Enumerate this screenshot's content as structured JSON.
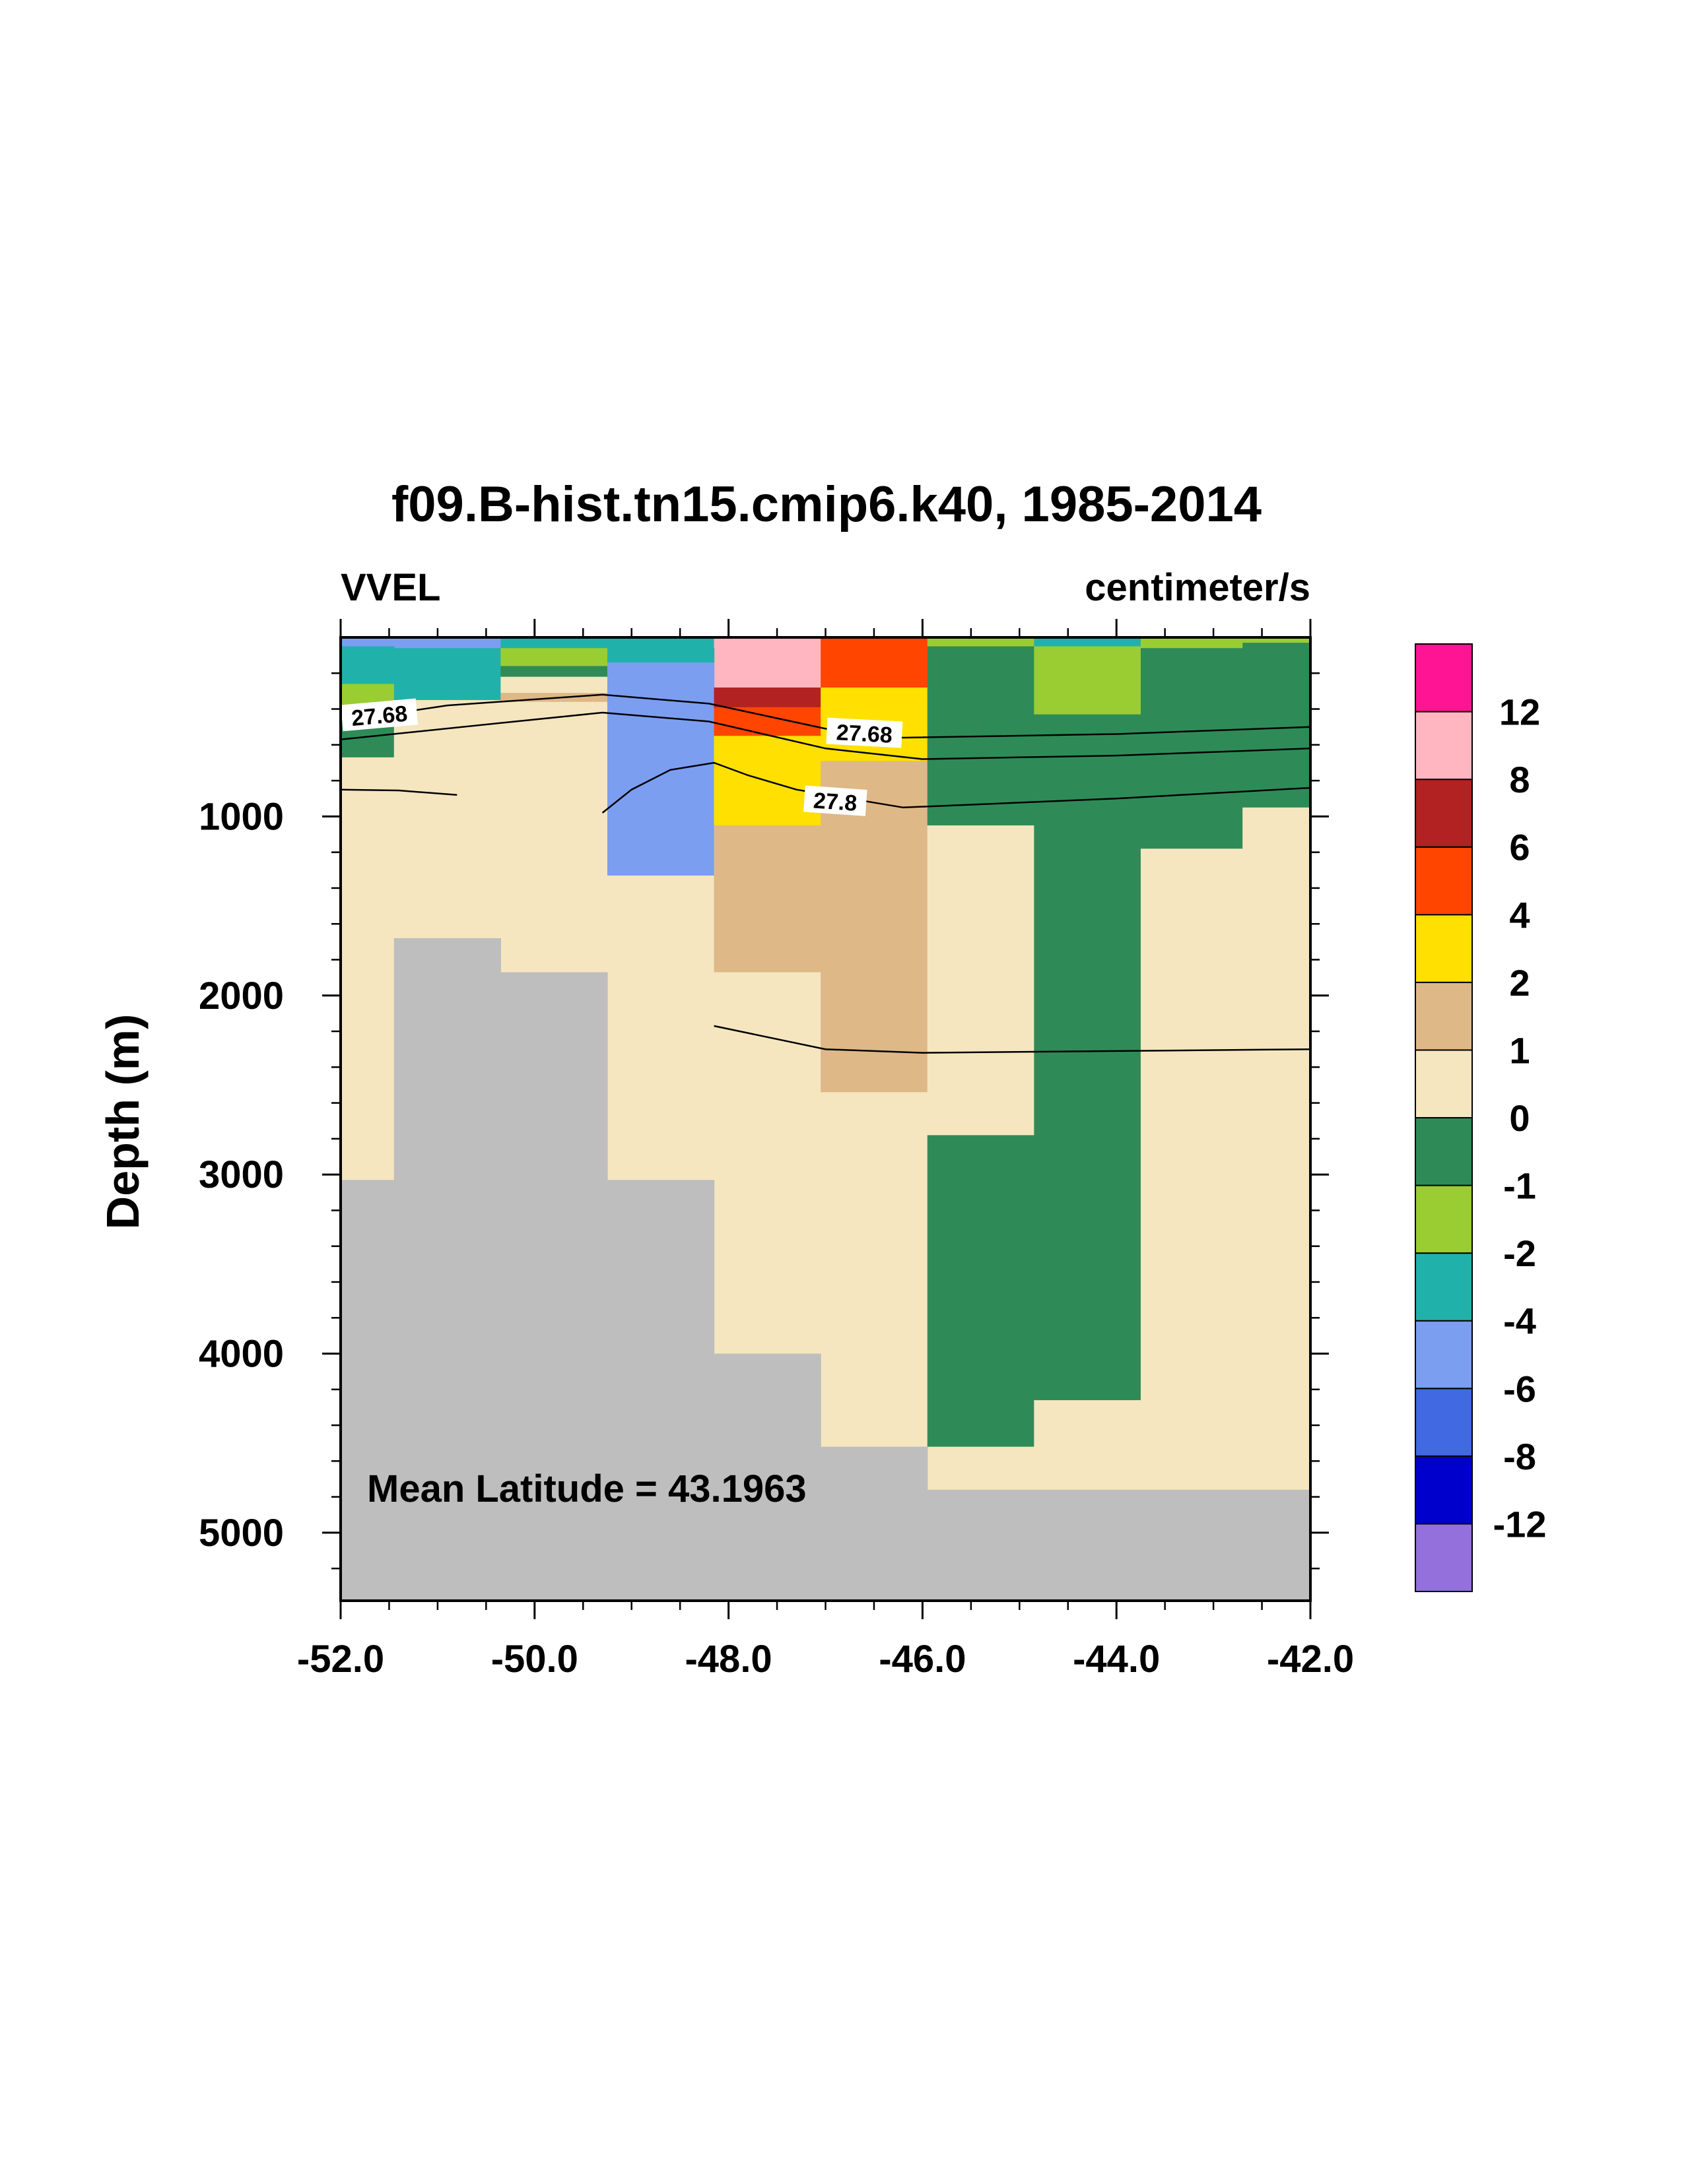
{
  "chart_data": {
    "type": "heatmap",
    "title": "f09.B-hist.tn15.cmip6.k40, 1985-2014",
    "left_label": "VVEL",
    "right_label": "centimeter/s",
    "xlabel": "",
    "ylabel": "Depth (m)",
    "annotation": "Mean Latitude = 43.1963",
    "xlim": [
      -52.0,
      -42.0
    ],
    "ylim": [
      0,
      5380
    ],
    "y_reversed": true,
    "x_ticks": [
      "-52.0",
      "-50.0",
      "-48.0",
      "-46.0",
      "-44.0",
      "-42.0"
    ],
    "x_tick_values": [
      -52,
      -50,
      -48,
      -46,
      -44,
      -42
    ],
    "y_ticks": [
      "1000",
      "2000",
      "3000",
      "4000",
      "5000"
    ],
    "y_tick_values": [
      1000,
      2000,
      3000,
      4000,
      5000
    ],
    "colorbar": {
      "labels": [
        "12",
        "8",
        "6",
        "4",
        "2",
        "1",
        "0",
        "-1",
        "-2",
        "-4",
        "-6",
        "-8",
        "-12"
      ],
      "colors": [
        "#9370DB",
        "#0000CD",
        "#4169E1",
        "#7B9EF0",
        "#20B2AA",
        "#9ACD32",
        "#2E8B57",
        "#F5E6C0",
        "#DEB887",
        "#FFE000",
        "#FF4500",
        "#B22222",
        "#FFB6C1",
        "#FF1493"
      ]
    },
    "land_color": "#BEBEBE",
    "cells": [
      {
        "x0": -52.0,
        "x1": -51.45,
        "y0": 0,
        "y1": 50,
        "c": "#7B9EF0"
      },
      {
        "x0": -51.45,
        "x1": -50.35,
        "y0": 0,
        "y1": 60,
        "c": "#7B9EF0"
      },
      {
        "x0": -50.35,
        "x1": -49.25,
        "y0": 0,
        "y1": 60,
        "c": "#20B2AA"
      },
      {
        "x0": -49.25,
        "x1": -48.15,
        "y0": 0,
        "y1": 60,
        "c": "#20B2AA"
      },
      {
        "x0": -48.15,
        "x1": -47.05,
        "y0": 0,
        "y1": 280,
        "c": "#FFB6C1"
      },
      {
        "x0": -47.05,
        "x1": -45.95,
        "y0": 0,
        "y1": 280,
        "c": "#FF4500"
      },
      {
        "x0": -45.95,
        "x1": -44.85,
        "y0": 0,
        "y1": 50,
        "c": "#9ACD32"
      },
      {
        "x0": -44.85,
        "x1": -43.75,
        "y0": 0,
        "y1": 50,
        "c": "#20B2AA"
      },
      {
        "x0": -43.75,
        "x1": -42.7,
        "y0": 0,
        "y1": 60,
        "c": "#9ACD32"
      },
      {
        "x0": -42.7,
        "x1": -42.0,
        "y0": 0,
        "y1": 30,
        "c": "#9ACD32"
      },
      {
        "x0": -52.0,
        "x1": -51.45,
        "y0": 50,
        "y1": 260,
        "c": "#20B2AA"
      },
      {
        "x0": -52.0,
        "x1": -51.45,
        "y0": 260,
        "y1": 400,
        "c": "#9ACD32"
      },
      {
        "x0": -52.0,
        "x1": -51.45,
        "y0": 400,
        "y1": 670,
        "c": "#2E8B57"
      },
      {
        "x0": -52.0,
        "x1": -51.45,
        "y0": 670,
        "y1": 3030,
        "c": "#F5E6C0"
      },
      {
        "x0": -51.45,
        "x1": -50.35,
        "y0": 60,
        "y1": 350,
        "c": "#20B2AA"
      },
      {
        "x0": -51.45,
        "x1": -50.35,
        "y0": 350,
        "y1": 1680,
        "c": "#F5E6C0"
      },
      {
        "x0": -50.35,
        "x1": -49.25,
        "y0": 60,
        "y1": 160,
        "c": "#9ACD32"
      },
      {
        "x0": -50.35,
        "x1": -49.25,
        "y0": 160,
        "y1": 220,
        "c": "#2E8B57"
      },
      {
        "x0": -50.35,
        "x1": -49.25,
        "y0": 220,
        "y1": 310,
        "c": "#F5E6C0"
      },
      {
        "x0": -50.35,
        "x1": -49.25,
        "y0": 310,
        "y1": 360,
        "c": "#DEB887"
      },
      {
        "x0": -50.35,
        "x1": -49.25,
        "y0": 360,
        "y1": 1870,
        "c": "#F5E6C0"
      },
      {
        "x0": -49.25,
        "x1": -48.15,
        "y0": 60,
        "y1": 140,
        "c": "#20B2AA"
      },
      {
        "x0": -49.25,
        "x1": -48.15,
        "y0": 140,
        "y1": 1330,
        "c": "#7B9EF0"
      },
      {
        "x0": -49.25,
        "x1": -48.15,
        "y0": 1330,
        "y1": 3030,
        "c": "#F5E6C0"
      },
      {
        "x0": -48.15,
        "x1": -47.05,
        "y0": 280,
        "y1": 390,
        "c": "#B22222"
      },
      {
        "x0": -48.15,
        "x1": -47.05,
        "y0": 390,
        "y1": 550,
        "c": "#FF4500"
      },
      {
        "x0": -48.15,
        "x1": -47.05,
        "y0": 550,
        "y1": 1050,
        "c": "#FFE000"
      },
      {
        "x0": -48.15,
        "x1": -47.05,
        "y0": 1050,
        "y1": 1870,
        "c": "#DEB887"
      },
      {
        "x0": -48.15,
        "x1": -47.05,
        "y0": 1870,
        "y1": 4000,
        "c": "#F5E6C0"
      },
      {
        "x0": -47.05,
        "x1": -45.95,
        "y0": 280,
        "y1": 400,
        "c": "#FFE000"
      },
      {
        "x0": -47.05,
        "x1": -45.95,
        "y0": 400,
        "y1": 560,
        "c": "#FFE000"
      },
      {
        "x0": -47.05,
        "x1": -45.95,
        "y0": 560,
        "y1": 690,
        "c": "#FFE000"
      },
      {
        "x0": -47.05,
        "x1": -45.95,
        "y0": 690,
        "y1": 2540,
        "c": "#DEB887"
      },
      {
        "x0": -47.05,
        "x1": -45.95,
        "y0": 2540,
        "y1": 4520,
        "c": "#F5E6C0"
      },
      {
        "x0": -45.95,
        "x1": -44.85,
        "y0": 50,
        "y1": 1050,
        "c": "#2E8B57"
      },
      {
        "x0": -45.95,
        "x1": -44.85,
        "y0": 1050,
        "y1": 2780,
        "c": "#F5E6C0"
      },
      {
        "x0": -45.95,
        "x1": -44.85,
        "y0": 2780,
        "y1": 4520,
        "c": "#2E8B57"
      },
      {
        "x0": -45.95,
        "x1": -44.85,
        "y0": 4520,
        "y1": 4760,
        "c": "#F5E6C0"
      },
      {
        "x0": -44.85,
        "x1": -43.75,
        "y0": 50,
        "y1": 430,
        "c": "#9ACD32"
      },
      {
        "x0": -44.85,
        "x1": -43.75,
        "y0": 430,
        "y1": 4260,
        "c": "#2E8B57"
      },
      {
        "x0": -44.85,
        "x1": -43.75,
        "y0": 4260,
        "y1": 4760,
        "c": "#F5E6C0"
      },
      {
        "x0": -43.75,
        "x1": -42.7,
        "y0": 60,
        "y1": 1180,
        "c": "#2E8B57"
      },
      {
        "x0": -43.75,
        "x1": -42.7,
        "y0": 1180,
        "y1": 4760,
        "c": "#F5E6C0"
      },
      {
        "x0": -42.7,
        "x1": -42.0,
        "y0": 30,
        "y1": 950,
        "c": "#2E8B57"
      },
      {
        "x0": -42.7,
        "x1": -42.0,
        "y0": 950,
        "y1": 4760,
        "c": "#F5E6C0"
      }
    ],
    "land_cells": [
      {
        "x0": -52.0,
        "x1": -51.45,
        "y0": 3030,
        "y1": 5380
      },
      {
        "x0": -51.45,
        "x1": -50.35,
        "y0": 1680,
        "y1": 5380
      },
      {
        "x0": -50.35,
        "x1": -49.25,
        "y0": 1870,
        "y1": 5380
      },
      {
        "x0": -49.25,
        "x1": -48.15,
        "y0": 3030,
        "y1": 5380
      },
      {
        "x0": -48.15,
        "x1": -47.05,
        "y0": 4000,
        "y1": 5380
      },
      {
        "x0": -47.05,
        "x1": -45.95,
        "y0": 4520,
        "y1": 5380
      },
      {
        "x0": -45.95,
        "x1": -42.0,
        "y0": 4760,
        "y1": 5380
      }
    ],
    "contours": [
      {
        "points": [
          [
            -52.0,
            470
          ],
          [
            -50.9,
            380
          ],
          [
            -49.3,
            320
          ],
          [
            -48.2,
            370
          ],
          [
            -47.0,
            510
          ],
          [
            -46.2,
            560
          ],
          [
            -44.0,
            540
          ],
          [
            -42.0,
            500
          ]
        ]
      },
      {
        "points": [
          [
            -52.0,
            570
          ],
          [
            -50.2,
            470
          ],
          [
            -49.3,
            420
          ],
          [
            -48.2,
            470
          ],
          [
            -47.0,
            620
          ],
          [
            -46.0,
            680
          ],
          [
            -44.0,
            660
          ],
          [
            -42.0,
            620
          ]
        ]
      },
      {
        "points": [
          [
            -52.0,
            850
          ],
          [
            -51.4,
            855
          ],
          [
            -50.8,
            880
          ]
        ]
      },
      {
        "points": [
          [
            -49.3,
            980
          ],
          [
            -49.0,
            850
          ],
          [
            -48.6,
            740
          ],
          [
            -48.15,
            700
          ],
          [
            -47.8,
            770
          ],
          [
            -47.3,
            850
          ],
          [
            -46.2,
            950
          ],
          [
            -44.0,
            900
          ],
          [
            -42.0,
            840
          ]
        ]
      },
      {
        "points": [
          [
            -48.15,
            2170
          ],
          [
            -47.0,
            2300
          ],
          [
            -46.0,
            2320
          ],
          [
            -44.0,
            2310
          ],
          [
            -42.0,
            2300
          ]
        ]
      }
    ],
    "contour_labels": [
      {
        "text": "27.68",
        "x": -51.6,
        "y": 440,
        "angle": -5
      },
      {
        "text": "27.68",
        "x": -46.6,
        "y": 540,
        "angle": 3
      },
      {
        "text": "27.8",
        "x": -46.9,
        "y": 920,
        "angle": 4
      }
    ]
  }
}
